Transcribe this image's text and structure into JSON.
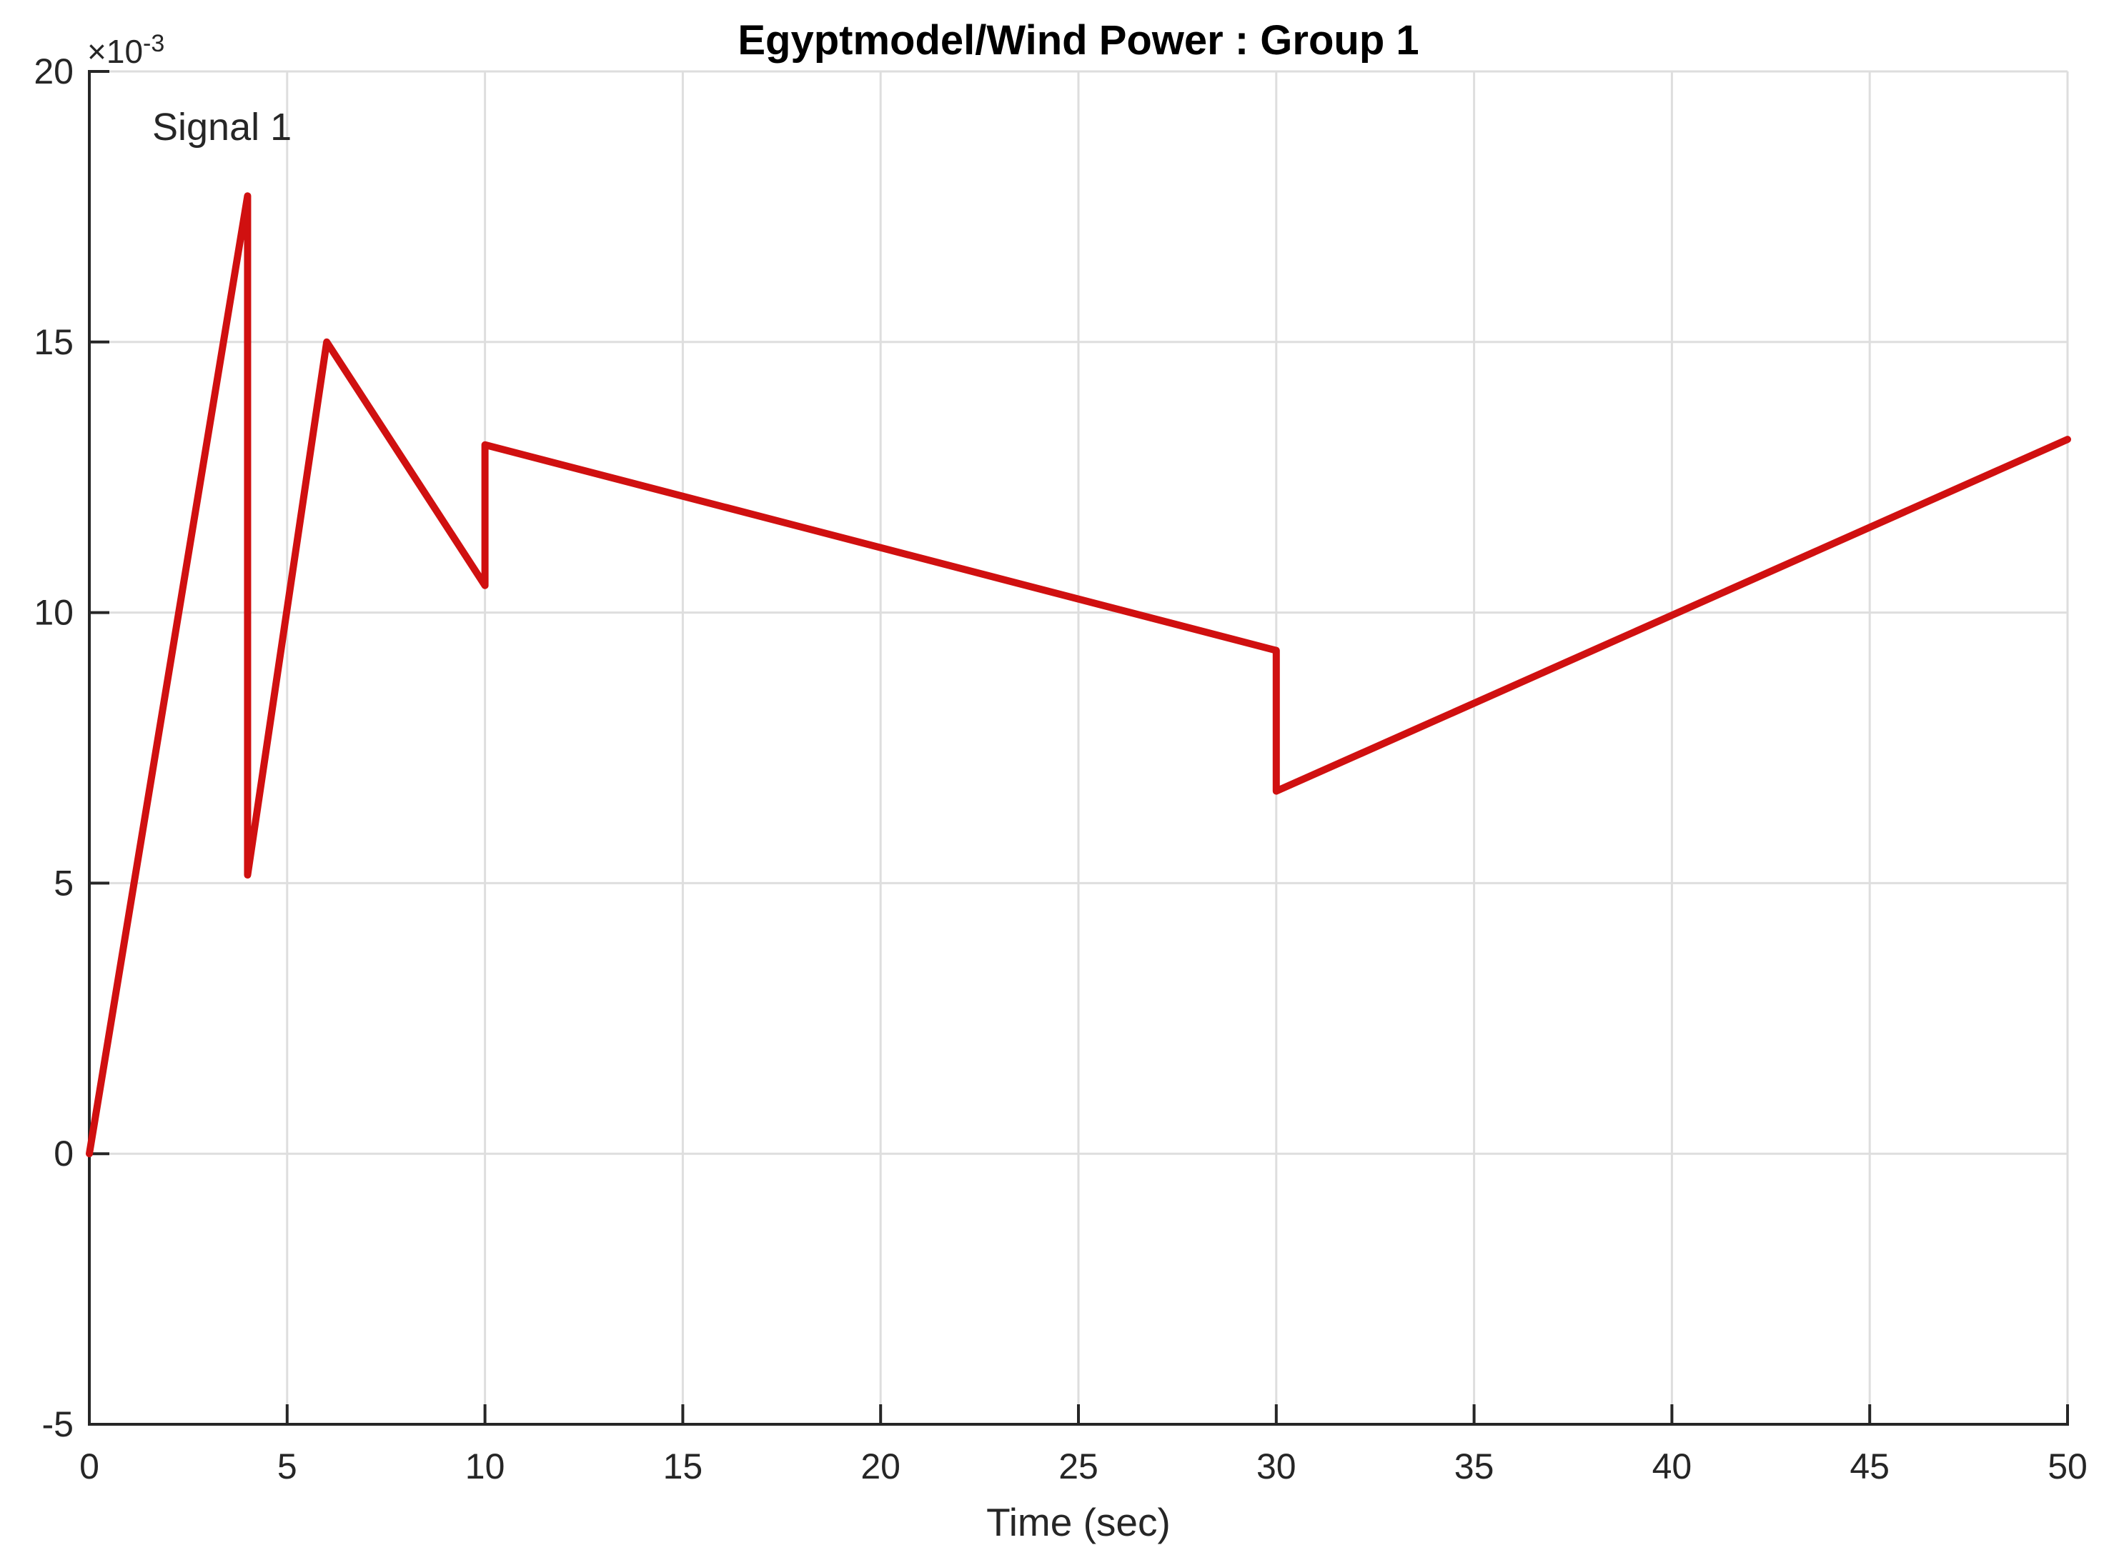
{
  "figure": {
    "title": "Egyptmodel/Wind Power : Group 1",
    "xlabel": "Time (sec)",
    "y_exponent": {
      "base": "×10",
      "power": "-3"
    },
    "signal_label": "Signal 1"
  },
  "colors": {
    "line": "#d01010",
    "grid": "#dedede",
    "axis": "#262626",
    "tick_text": "#262626",
    "title_text": "#000000"
  },
  "chart_data": {
    "type": "line",
    "title": "Egyptmodel/Wind Power : Group 1",
    "xlabel": "Time (sec)",
    "ylabel": "",
    "y_scale_label": "×10⁻³",
    "y_unit_multiplier": 0.001,
    "xlim": [
      0,
      50
    ],
    "ylim": [
      -5,
      20
    ],
    "xticks": [
      0,
      5,
      10,
      15,
      20,
      25,
      30,
      35,
      40,
      45,
      50
    ],
    "yticks": [
      -5,
      0,
      5,
      10,
      15,
      20
    ],
    "grid": true,
    "legend_position": "none",
    "series": [
      {
        "name": "Signal 1",
        "color": "#d01010",
        "line_width": 10,
        "points": [
          [
            0,
            0
          ],
          [
            4,
            17.7
          ],
          [
            4,
            5.15
          ],
          [
            6,
            15.0
          ],
          [
            10,
            10.5
          ],
          [
            10,
            13.1
          ],
          [
            30,
            9.3
          ],
          [
            30,
            6.7
          ],
          [
            50,
            13.2
          ]
        ]
      }
    ],
    "annotation": {
      "text": "Signal 1",
      "x": 1.6,
      "y": 18.6
    }
  }
}
